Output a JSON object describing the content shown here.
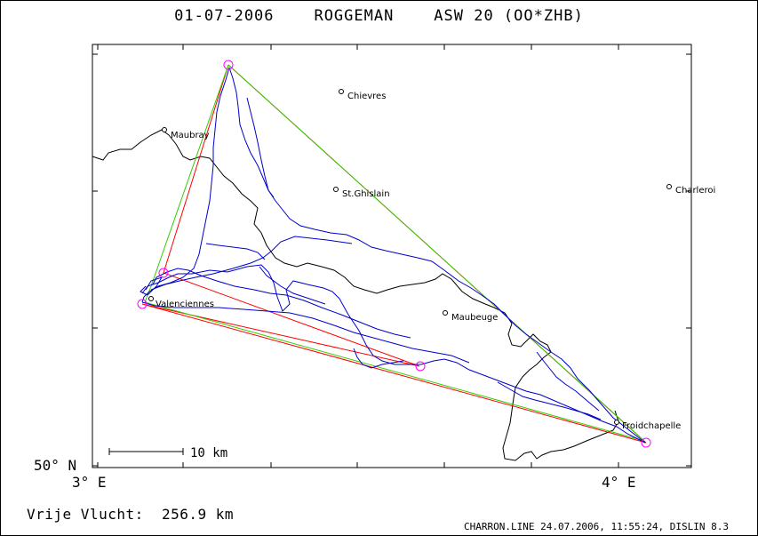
{
  "header": {
    "title": "01-07-2006    ROGGEMAN    ASW 20 (OO*ZHB)"
  },
  "axes": {
    "lat_label": "50° N",
    "lon_left_label": "3° E",
    "lon_right_label": "4° E"
  },
  "scale_bar": {
    "label": "10 km"
  },
  "towns": [
    {
      "name": "Chievres"
    },
    {
      "name": "Maubray"
    },
    {
      "name": "St.Ghislain"
    },
    {
      "name": "Charleroi"
    },
    {
      "name": "Valenciennes"
    },
    {
      "name": "Maubeuge"
    },
    {
      "name": "Froidchapelle"
    }
  ],
  "task": {
    "turnpoint_count": 5
  },
  "footer": {
    "distance_label": "Vrije Vlucht:  256.9 km",
    "program_info": "CHARRON.LINE 24.07.2006, 11:55:24, DISLIN 8.3"
  },
  "colors": {
    "track": "#0000cc",
    "task_line": "#ff0000",
    "optimized_line": "#33cc00",
    "border": "#000000",
    "turnpoint_marker": "#ff00ff"
  }
}
